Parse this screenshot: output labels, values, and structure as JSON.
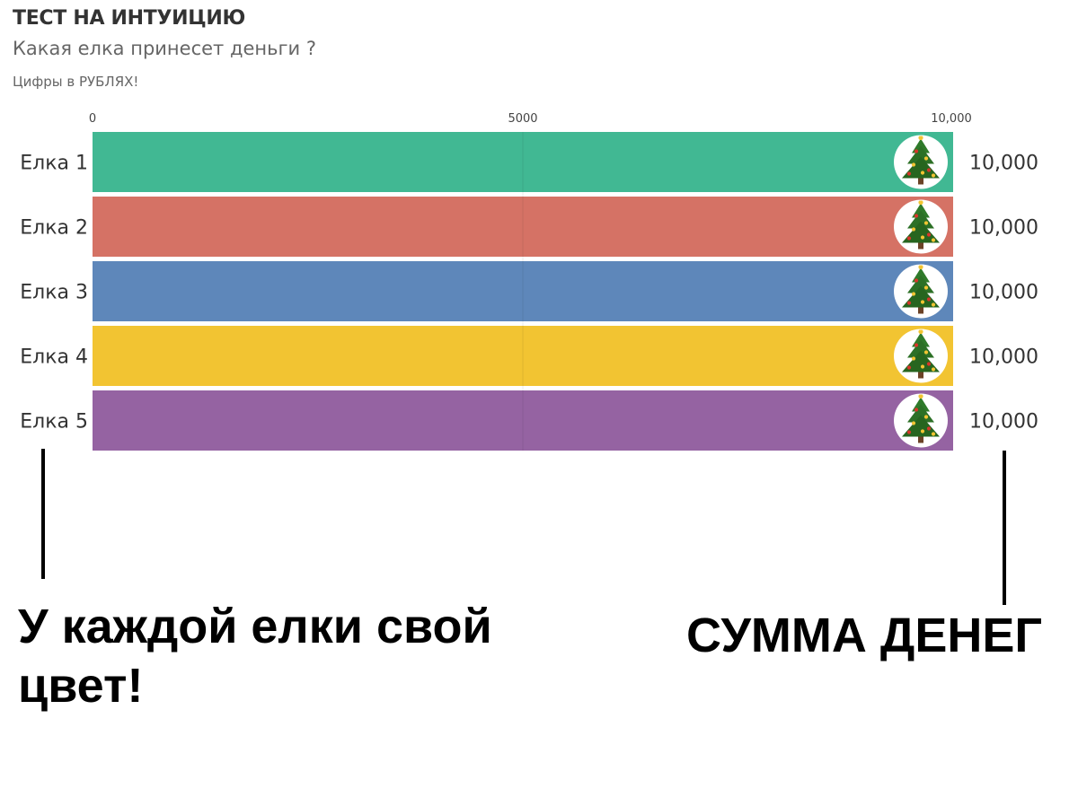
{
  "chart_data": {
    "type": "bar",
    "orientation": "horizontal",
    "title": "ТЕСТ НА ИНТУИЦИЮ",
    "subtitle": "Какая елка принесет деньги ?",
    "caption": "Цифры в РУБЛЯХ!",
    "categories": [
      "Елка 1",
      "Елка 2",
      "Елка 3",
      "Елка 4",
      "Елка 5"
    ],
    "values": [
      10000,
      10000,
      10000,
      10000,
      10000
    ],
    "value_labels": [
      "10,000",
      "10,000",
      "10,000",
      "10,000",
      "10,000"
    ],
    "colors": [
      "#41b893",
      "#d57265",
      "#5e87ba",
      "#f2c432",
      "#9563a2"
    ],
    "xlim": [
      0,
      10000
    ],
    "xticks": [
      0,
      5000,
      10000
    ],
    "xtick_labels": [
      "0",
      "5000",
      "10,000"
    ],
    "grid": true,
    "legend": "none",
    "icon": "christmas-tree-icon"
  },
  "annotations": {
    "left_note": "У каждой елки свой цвет!",
    "right_note": "СУММА ДЕНЕГ"
  }
}
